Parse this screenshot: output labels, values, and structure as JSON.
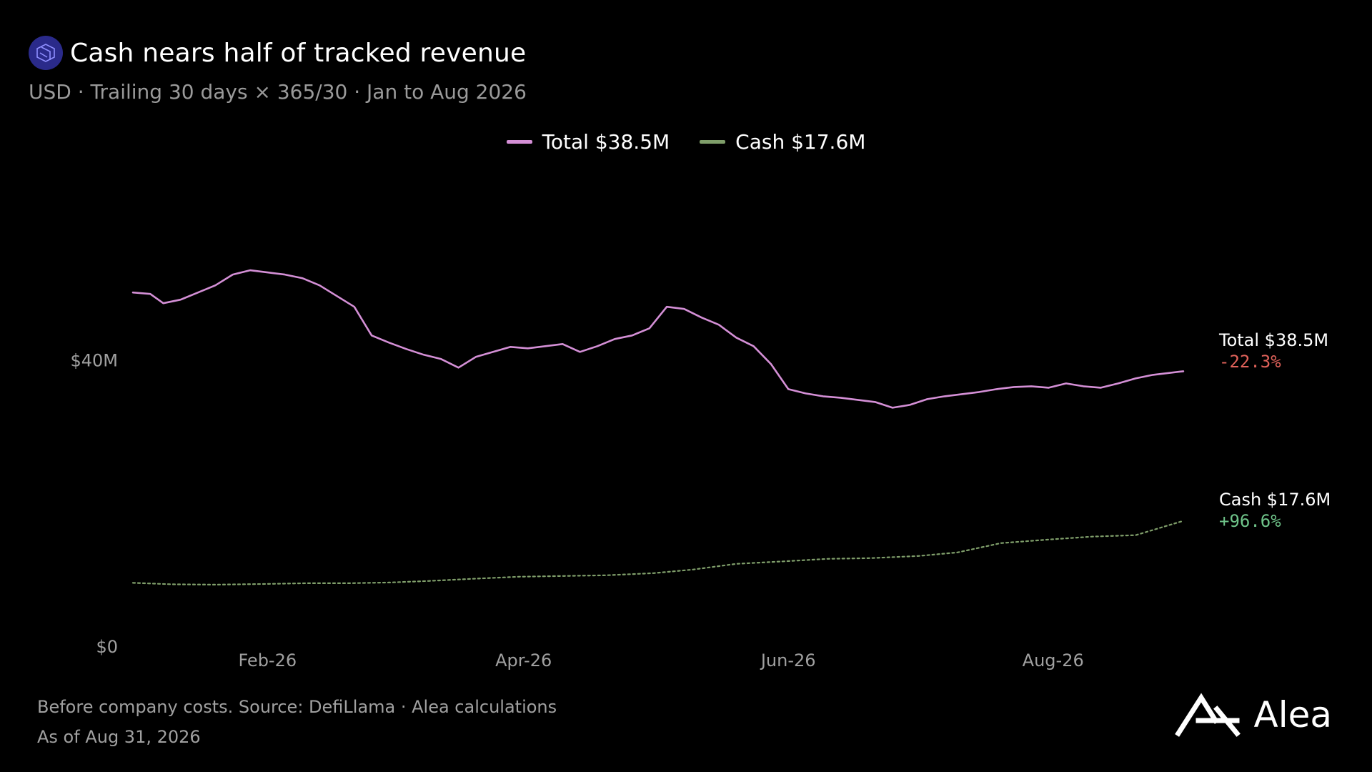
{
  "header": {
    "title": "Cash nears half of tracked revenue",
    "subtitle": "USD · Trailing 30 days × 365/30 · Jan to Aug 2026",
    "logo_icon": "protocol-logo-icon"
  },
  "legend": [
    {
      "label": "Total $38.5M",
      "color": "#d48fd6"
    },
    {
      "label": "Cash $17.6M",
      "color": "#7f9e6a"
    }
  ],
  "end_labels": {
    "total": {
      "label": "Total $38.5M",
      "change": "-22.3%",
      "change_color": "#e0625a"
    },
    "cash": {
      "label": "Cash $17.6M",
      "change": "+96.6%",
      "change_color": "#6fc48a"
    }
  },
  "footer": {
    "note": "Before company costs. Source: DefiLlama · Alea calculations",
    "as_of": "As of Aug 31, 2026"
  },
  "brand": {
    "name": "Alea",
    "icon": "alea-logo-icon"
  },
  "chart_data": {
    "type": "line",
    "title": "Cash nears half of tracked revenue",
    "subtitle": "USD · Trailing 30 days × 365/30 · Jan to Aug 2026",
    "x_range": [
      "2026-01-01",
      "2026-09-01"
    ],
    "xticks": [
      {
        "date": "2026-02-01",
        "label": "Feb-26"
      },
      {
        "date": "2026-04-01",
        "label": "Apr-26"
      },
      {
        "date": "2026-06-01",
        "label": "Jun-26"
      },
      {
        "date": "2026-08-01",
        "label": "Aug-26"
      }
    ],
    "yticks": [
      {
        "value": 0,
        "label": "$0"
      },
      {
        "value": 40,
        "label": "$40M"
      }
    ],
    "ylim": [
      0,
      60
    ],
    "y_unit": "USD millions",
    "grid": false,
    "legend_position": "top-center",
    "series": [
      {
        "name": "Total",
        "color": "#d48fd6",
        "style": "solid",
        "points": [
          [
            "2026-01-01",
            49.5
          ],
          [
            "2026-01-05",
            49.3
          ],
          [
            "2026-01-08",
            48.0
          ],
          [
            "2026-01-12",
            48.5
          ],
          [
            "2026-01-16",
            49.5
          ],
          [
            "2026-01-20",
            50.5
          ],
          [
            "2026-01-24",
            52.0
          ],
          [
            "2026-01-28",
            52.6
          ],
          [
            "2026-02-01",
            52.3
          ],
          [
            "2026-02-05",
            52.0
          ],
          [
            "2026-02-09",
            51.5
          ],
          [
            "2026-02-13",
            50.5
          ],
          [
            "2026-02-17",
            49.0
          ],
          [
            "2026-02-21",
            47.5
          ],
          [
            "2026-02-25",
            43.5
          ],
          [
            "2026-03-01",
            42.5
          ],
          [
            "2026-03-05",
            41.6
          ],
          [
            "2026-03-09",
            40.8
          ],
          [
            "2026-03-13",
            40.2
          ],
          [
            "2026-03-17",
            39.0
          ],
          [
            "2026-03-21",
            40.5
          ],
          [
            "2026-03-25",
            41.2
          ],
          [
            "2026-03-29",
            41.9
          ],
          [
            "2026-04-02",
            41.7
          ],
          [
            "2026-04-06",
            42.0
          ],
          [
            "2026-04-10",
            42.3
          ],
          [
            "2026-04-14",
            41.2
          ],
          [
            "2026-04-18",
            42.0
          ],
          [
            "2026-04-22",
            43.0
          ],
          [
            "2026-04-26",
            43.5
          ],
          [
            "2026-04-30",
            44.5
          ],
          [
            "2026-05-04",
            47.5
          ],
          [
            "2026-05-08",
            47.2
          ],
          [
            "2026-05-12",
            46.0
          ],
          [
            "2026-05-16",
            45.0
          ],
          [
            "2026-05-20",
            43.2
          ],
          [
            "2026-05-24",
            42.0
          ],
          [
            "2026-05-28",
            39.5
          ],
          [
            "2026-06-01",
            36.0
          ],
          [
            "2026-06-05",
            35.4
          ],
          [
            "2026-06-09",
            35.0
          ],
          [
            "2026-06-13",
            34.8
          ],
          [
            "2026-06-17",
            34.5
          ],
          [
            "2026-06-21",
            34.2
          ],
          [
            "2026-06-25",
            33.4
          ],
          [
            "2026-06-29",
            33.8
          ],
          [
            "2026-07-03",
            34.6
          ],
          [
            "2026-07-07",
            35.0
          ],
          [
            "2026-07-11",
            35.3
          ],
          [
            "2026-07-15",
            35.6
          ],
          [
            "2026-07-19",
            36.0
          ],
          [
            "2026-07-23",
            36.3
          ],
          [
            "2026-07-27",
            36.4
          ],
          [
            "2026-07-31",
            36.2
          ],
          [
            "2026-08-04",
            36.8
          ],
          [
            "2026-08-08",
            36.4
          ],
          [
            "2026-08-12",
            36.2
          ],
          [
            "2026-08-16",
            36.8
          ],
          [
            "2026-08-20",
            37.5
          ],
          [
            "2026-08-24",
            38.0
          ],
          [
            "2026-08-31",
            38.5
          ]
        ]
      },
      {
        "name": "Cash",
        "color": "#7f9e6a",
        "style": "dotted",
        "points": [
          [
            "2026-01-01",
            8.95
          ],
          [
            "2026-01-10",
            8.75
          ],
          [
            "2026-01-20",
            8.7
          ],
          [
            "2026-02-01",
            8.8
          ],
          [
            "2026-02-10",
            8.9
          ],
          [
            "2026-02-20",
            8.9
          ],
          [
            "2026-03-01",
            9.0
          ],
          [
            "2026-03-10",
            9.2
          ],
          [
            "2026-03-20",
            9.5
          ],
          [
            "2026-03-31",
            9.8
          ],
          [
            "2026-04-10",
            9.9
          ],
          [
            "2026-04-20",
            10.0
          ],
          [
            "2026-05-01",
            10.3
          ],
          [
            "2026-05-10",
            10.8
          ],
          [
            "2026-05-20",
            11.6
          ],
          [
            "2026-05-31",
            11.95
          ],
          [
            "2026-06-10",
            12.3
          ],
          [
            "2026-06-20",
            12.4
          ],
          [
            "2026-07-01",
            12.7
          ],
          [
            "2026-07-10",
            13.2
          ],
          [
            "2026-07-20",
            14.5
          ],
          [
            "2026-07-31",
            15.0
          ],
          [
            "2026-08-10",
            15.4
          ],
          [
            "2026-08-20",
            15.6
          ],
          [
            "2026-08-31",
            17.6
          ]
        ]
      }
    ]
  }
}
